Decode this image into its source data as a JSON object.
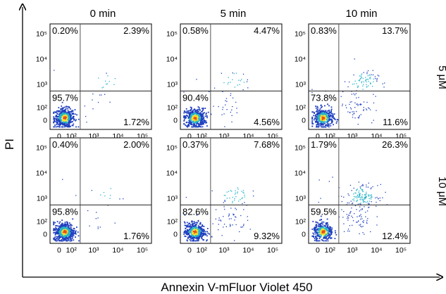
{
  "figure": {
    "y_axis_label": "PI",
    "x_axis_label": "Annexin V-mFluor Violet 450",
    "column_labels": [
      "0 min",
      "5 min",
      "10 min"
    ],
    "row_labels": [
      "5 μM",
      "10 μM"
    ]
  },
  "chart_data": {
    "type": "scatter",
    "subtype": "flow-cytometry density dot plot grid (2 rows x 3 columns)",
    "xlabel": "Annexin V-mFluor Violet 450",
    "ylabel": "PI",
    "x_scale": "biexponential",
    "y_scale": "biexponential",
    "x_tick_labels": [
      "0",
      "10²",
      "10³",
      "10⁴",
      "10⁵"
    ],
    "y_tick_labels": [
      "0",
      "10²",
      "10³",
      "10⁴",
      "10⁵"
    ],
    "quadrant_gate": {
      "x": 250,
      "y": 500
    },
    "columns": [
      "0 min",
      "5 min",
      "10 min"
    ],
    "rows": [
      "5 μM",
      "10 μM"
    ],
    "colors": {
      "low_density": "#1f3fbf",
      "mid_density": "#27b5c6",
      "high_density": "#f5e030",
      "peak_density": "#e8501a"
    },
    "panels": [
      {
        "row": "5 μM",
        "column": "0 min",
        "quadrants": {
          "upper_left": "0.20%",
          "upper_right": "2.39%",
          "lower_left": "95.7%",
          "lower_right": "1.72%"
        }
      },
      {
        "row": "5 μM",
        "column": "5 min",
        "quadrants": {
          "upper_left": "0.58%",
          "upper_right": "4.47%",
          "lower_left": "90.4%",
          "lower_right": "4.56%"
        }
      },
      {
        "row": "5 μM",
        "column": "10 min",
        "quadrants": {
          "upper_left": "0.83%",
          "upper_right": "13.7%",
          "lower_left": "73.8%",
          "lower_right": "11.6%"
        }
      },
      {
        "row": "10 μM",
        "column": "0 min",
        "quadrants": {
          "upper_left": "0.40%",
          "upper_right": "2.00%",
          "lower_left": "95.8%",
          "lower_right": "1.76%"
        }
      },
      {
        "row": "10 μM",
        "column": "5 min",
        "quadrants": {
          "upper_left": "0.37%",
          "upper_right": "7.68%",
          "lower_left": "82.6%",
          "lower_right": "9.32%"
        }
      },
      {
        "row": "10 μM",
        "column": "10 min",
        "quadrants": {
          "upper_left": "1.79%",
          "upper_right": "26.3%",
          "lower_left": "59.5%",
          "lower_right": "12.4%"
        }
      }
    ]
  }
}
